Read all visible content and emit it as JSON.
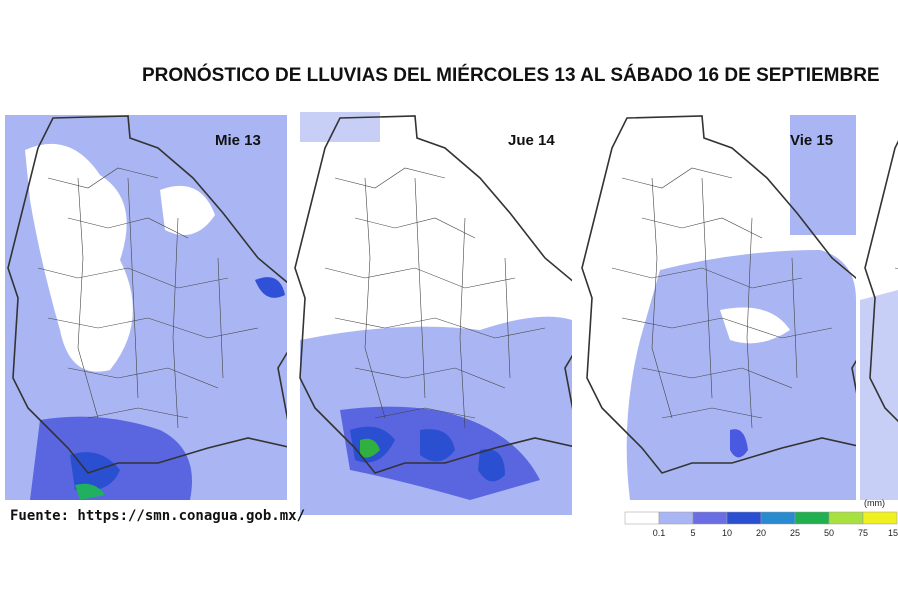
{
  "title": "PRONÓSTICO DE LLUVIAS DEL MIÉRCOLES 13 AL SÁBADO 16 DE SEPTIEMBRE",
  "panels": [
    {
      "label": "Mie 13"
    },
    {
      "label": "Jue 14"
    },
    {
      "label": "Vie 15"
    }
  ],
  "source": "Fuente: https://smn.conagua.gob.mx/",
  "legend": {
    "unit": "(mm)",
    "colors": [
      "#ffffff",
      "#aab6f3",
      "#6a6ee2",
      "#2a4fd0",
      "#2a8ad0",
      "#20b050",
      "#a8e040",
      "#f0f020"
    ],
    "labels": [
      "0.1",
      "5",
      "10",
      "20",
      "25",
      "50",
      "75",
      "15"
    ]
  }
}
